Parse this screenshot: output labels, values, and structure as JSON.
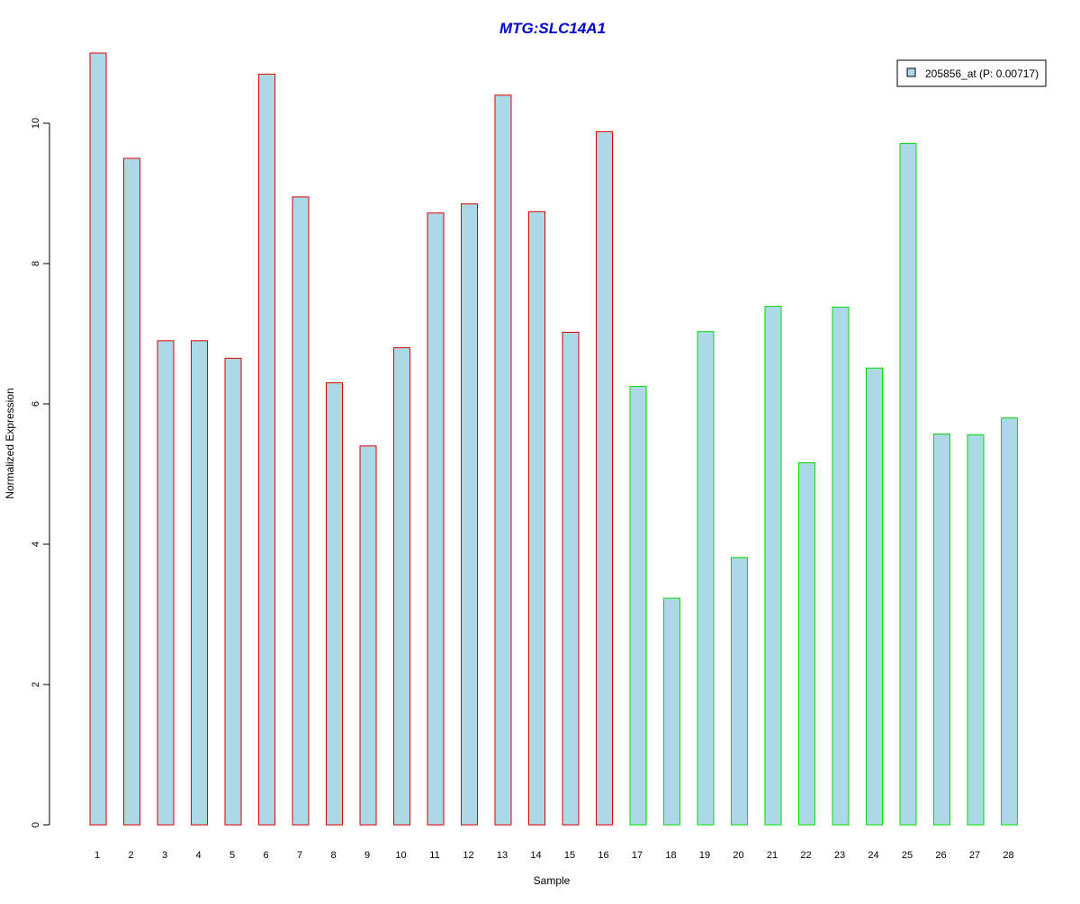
{
  "chart_data": {
    "type": "bar",
    "title": "MTG:SLC14A1",
    "xlabel": "Sample",
    "ylabel": "Normalized Expression",
    "categories": [
      "1",
      "2",
      "3",
      "4",
      "5",
      "6",
      "7",
      "8",
      "9",
      "10",
      "11",
      "12",
      "13",
      "14",
      "15",
      "16",
      "17",
      "18",
      "19",
      "20",
      "21",
      "22",
      "23",
      "24",
      "25",
      "26",
      "27",
      "28"
    ],
    "series": [
      {
        "name": "205856_at (P: 0.00717)",
        "values": [
          11.0,
          9.5,
          6.9,
          6.9,
          6.65,
          10.7,
          8.95,
          6.3,
          5.4,
          6.8,
          8.72,
          8.85,
          10.4,
          8.74,
          7.02,
          9.88,
          6.25,
          3.23,
          7.03,
          3.81,
          7.39,
          5.16,
          7.38,
          6.51,
          9.71,
          5.57,
          5.56,
          5.8
        ]
      }
    ],
    "group_border_colors": [
      "#dd0000",
      "#dd0000",
      "#dd0000",
      "#dd0000",
      "#dd0000",
      "#dd0000",
      "#dd0000",
      "#dd0000",
      "#dd0000",
      "#dd0000",
      "#dd0000",
      "#dd0000",
      "#dd0000",
      "#dd0000",
      "#dd0000",
      "#dd0000",
      "#00dd00",
      "#00dd00",
      "#00dd00",
      "#00dd00",
      "#00dd00",
      "#00dd00",
      "#00dd00",
      "#00dd00",
      "#00dd00",
      "#00dd00",
      "#00dd00",
      "#00dd00"
    ],
    "bar_fill_color": "#add8e6",
    "title_color": "#0000cc",
    "y_ticks": [
      0,
      2,
      4,
      6,
      8,
      10
    ],
    "ylim": [
      0,
      11
    ],
    "grid": false,
    "legend_position": "top-right"
  }
}
